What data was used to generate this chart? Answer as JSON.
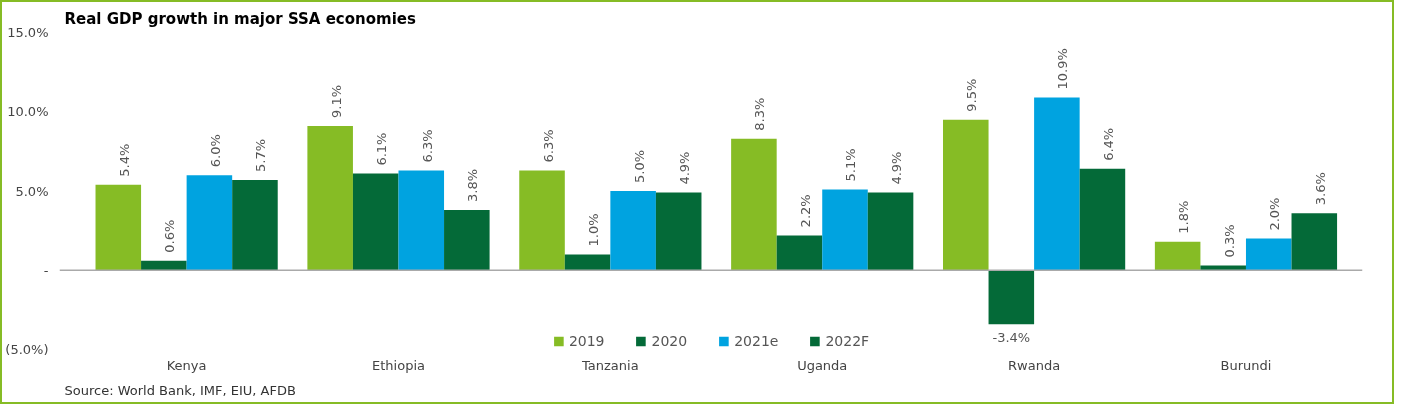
{
  "chart_data": {
    "type": "bar",
    "title": "Real GDP growth in major SSA economies",
    "categories": [
      "Kenya",
      "Ethiopia",
      "Tanzania",
      "Uganda",
      "Rwanda",
      "Burundi"
    ],
    "series": [
      {
        "name": "2019",
        "color": "#86bc25",
        "values": [
          5.4,
          9.1,
          6.3,
          8.3,
          9.5,
          1.8
        ],
        "value_labels": [
          "5.4%",
          "9.1%",
          "6.3%",
          "8.3%",
          "9.5%",
          "1.8%"
        ]
      },
      {
        "name": "2020",
        "color": "#046a38",
        "values": [
          0.6,
          6.1,
          1.0,
          2.2,
          -3.4,
          0.3
        ],
        "value_labels": [
          "0.6%",
          "6.1%",
          "1.0%",
          "2.2%",
          "-3.4%",
          "0.3%"
        ]
      },
      {
        "name": "2021e",
        "color": "#00a3e0",
        "values": [
          6.0,
          6.3,
          5.0,
          5.1,
          10.9,
          2.0
        ],
        "value_labels": [
          "6.0%",
          "6.3%",
          "5.0%",
          "5.1%",
          "10.9%",
          "2.0%"
        ]
      },
      {
        "name": "2022F",
        "color": "#046a38",
        "values": [
          5.7,
          3.8,
          4.9,
          4.9,
          6.4,
          3.6
        ],
        "value_labels": [
          "5.7%",
          "3.8%",
          "4.9%",
          "4.9%",
          "6.4%",
          "3.6%"
        ]
      }
    ],
    "ylim": [
      -5,
      15
    ],
    "yticks": [
      {
        "value": -5,
        "label": "(5.0%)"
      },
      {
        "value": 0,
        "label": "-"
      },
      {
        "value": 5,
        "label": "5.0%"
      },
      {
        "value": 10,
        "label": "10.0%"
      },
      {
        "value": 15,
        "label": "15.0%"
      }
    ],
    "grid": false,
    "ref_lines": [
      {
        "axis": "y",
        "value": 0,
        "color": "#aaaaaa",
        "line_style": "solid"
      }
    ],
    "legend": "bottom",
    "annotations": [
      "Source: World Bank, IMF, EIU, AFDB"
    ]
  }
}
